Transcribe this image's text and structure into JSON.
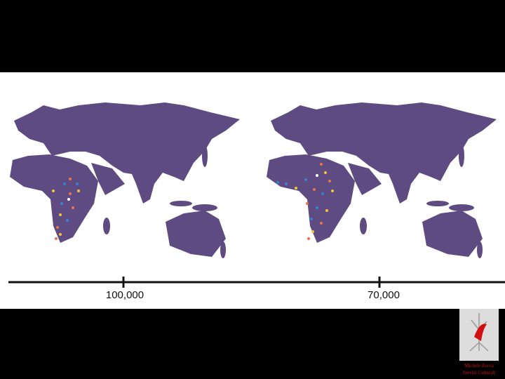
{
  "timeline": {
    "labels": [
      "100,000",
      "70,000"
    ]
  },
  "credit": {
    "line1": "Michele Zucca",
    "line2": "Servizi Culturali"
  }
}
